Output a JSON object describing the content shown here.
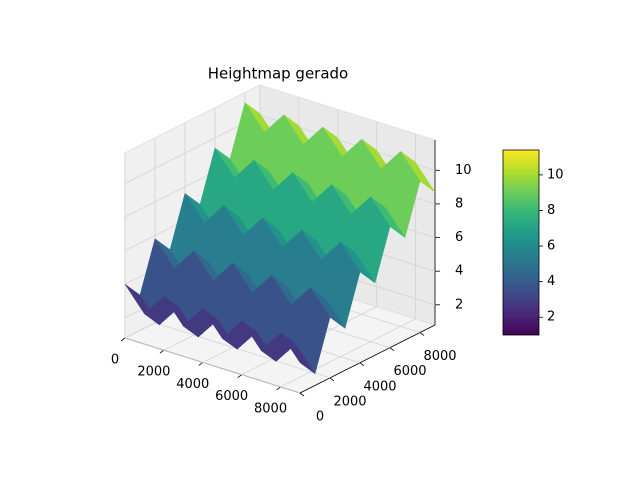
{
  "chart_data": {
    "type": "surface",
    "title": "Heightmap gerado",
    "colormap": "viridis",
    "x": [
      0,
      1000,
      2000,
      3000,
      4000,
      5000,
      6000,
      7000,
      8000,
      9000
    ],
    "y": [
      0,
      1000,
      2000,
      3000,
      4000,
      5000,
      6000,
      7000,
      8000,
      9000
    ],
    "z": [
      [
        4.0,
        2.6,
        4.0,
        2.6,
        4.0,
        2.6,
        4.0,
        2.6,
        4.0,
        2.6
      ],
      [
        2.9,
        1.5,
        2.9,
        1.5,
        2.9,
        1.5,
        2.9,
        1.5,
        2.9,
        1.5
      ],
      [
        5.8,
        4.4,
        5.8,
        4.4,
        5.8,
        4.4,
        5.8,
        4.4,
        5.8,
        4.4
      ],
      [
        4.7,
        3.3,
        4.7,
        3.3,
        4.7,
        3.3,
        4.7,
        3.3,
        4.7,
        3.3
      ],
      [
        7.6,
        6.2,
        7.6,
        6.2,
        7.6,
        6.2,
        7.6,
        6.2,
        7.6,
        6.2
      ],
      [
        6.5,
        5.1,
        6.5,
        5.1,
        6.5,
        5.1,
        6.5,
        5.1,
        6.5,
        5.1
      ],
      [
        9.4,
        8.0,
        9.4,
        8.0,
        9.4,
        8.0,
        9.4,
        8.0,
        9.4,
        8.0
      ],
      [
        8.3,
        6.9,
        8.3,
        6.9,
        8.3,
        6.9,
        8.3,
        6.9,
        8.3,
        6.9
      ],
      [
        11.2,
        9.8,
        11.2,
        9.8,
        11.2,
        9.8,
        11.2,
        9.8,
        11.2,
        9.8
      ],
      [
        10.1,
        8.7,
        10.1,
        8.7,
        10.1,
        8.7,
        10.1,
        8.7,
        10.1,
        8.7
      ]
    ],
    "xlim": [
      0,
      9000
    ],
    "ylim": [
      0,
      9000
    ],
    "zlim": [
      0.8,
      11.8
    ],
    "xticks": [
      0,
      2000,
      4000,
      6000,
      8000
    ],
    "yticks": [
      0,
      2000,
      4000,
      6000,
      8000
    ],
    "zticks": [
      2,
      4,
      6,
      8,
      10
    ],
    "clim": [
      1,
      11.4
    ],
    "cticks": [
      2,
      4,
      6,
      8,
      10
    ],
    "grid": true
  }
}
